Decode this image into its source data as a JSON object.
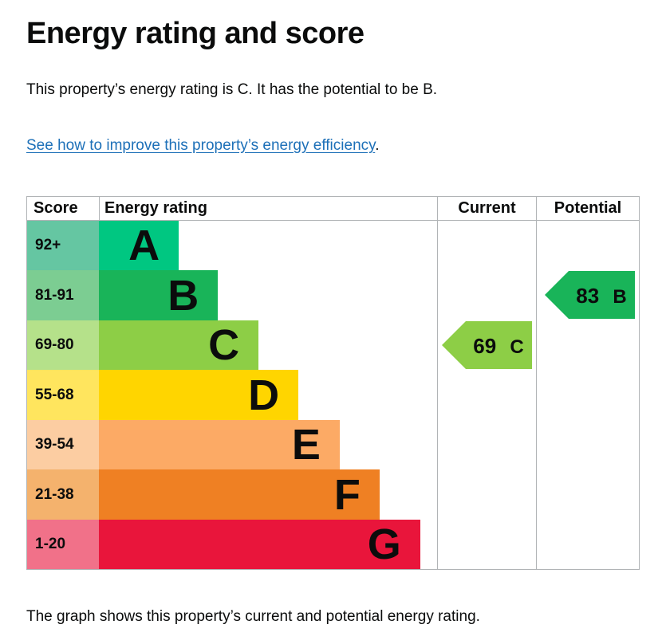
{
  "page": {
    "title": "Energy rating and score",
    "summary": "This property’s energy rating is C. It has the potential to be B.",
    "improve_link": "See how to improve this property’s energy efficiency",
    "improve_suffix": ".",
    "footer_note": "The graph shows this property’s current and potential energy rating."
  },
  "colors": {
    "text": "#0b0c0c",
    "link": "#1d70b8",
    "table_border": "#b1b4b6"
  },
  "chart_data": {
    "type": "bar",
    "title": "Energy rating and score",
    "columns": [
      "Score",
      "Energy rating",
      "Current",
      "Potential"
    ],
    "bands": [
      {
        "score": "92+",
        "letter": "A",
        "color": "#00c781",
        "score_bg": "#65c6a2",
        "width_pct": 23.6
      },
      {
        "score": "81-91",
        "letter": "B",
        "color": "#19b459",
        "score_bg": "#7ccd92",
        "width_pct": 35.2
      },
      {
        "score": "69-80",
        "letter": "C",
        "color": "#8dce46",
        "score_bg": "#b5e18a",
        "width_pct": 47.2
      },
      {
        "score": "55-68",
        "letter": "D",
        "color": "#ffd500",
        "score_bg": "#ffe55e",
        "width_pct": 59.0
      },
      {
        "score": "39-54",
        "letter": "E",
        "color": "#fcaa65",
        "score_bg": "#fccda2",
        "width_pct": 71.2
      },
      {
        "score": "21-38",
        "letter": "F",
        "color": "#ef8023",
        "score_bg": "#f4b26d",
        "width_pct": 83.0
      },
      {
        "score": "1-20",
        "letter": "G",
        "color": "#e9153b",
        "score_bg": "#f17189",
        "width_pct": 95.0
      }
    ],
    "current": {
      "value": "69",
      "letter": "C",
      "band_index": 2,
      "color": "#8dce46"
    },
    "potential": {
      "value": "83",
      "letter": "B",
      "band_index": 1,
      "color": "#19b459"
    }
  }
}
